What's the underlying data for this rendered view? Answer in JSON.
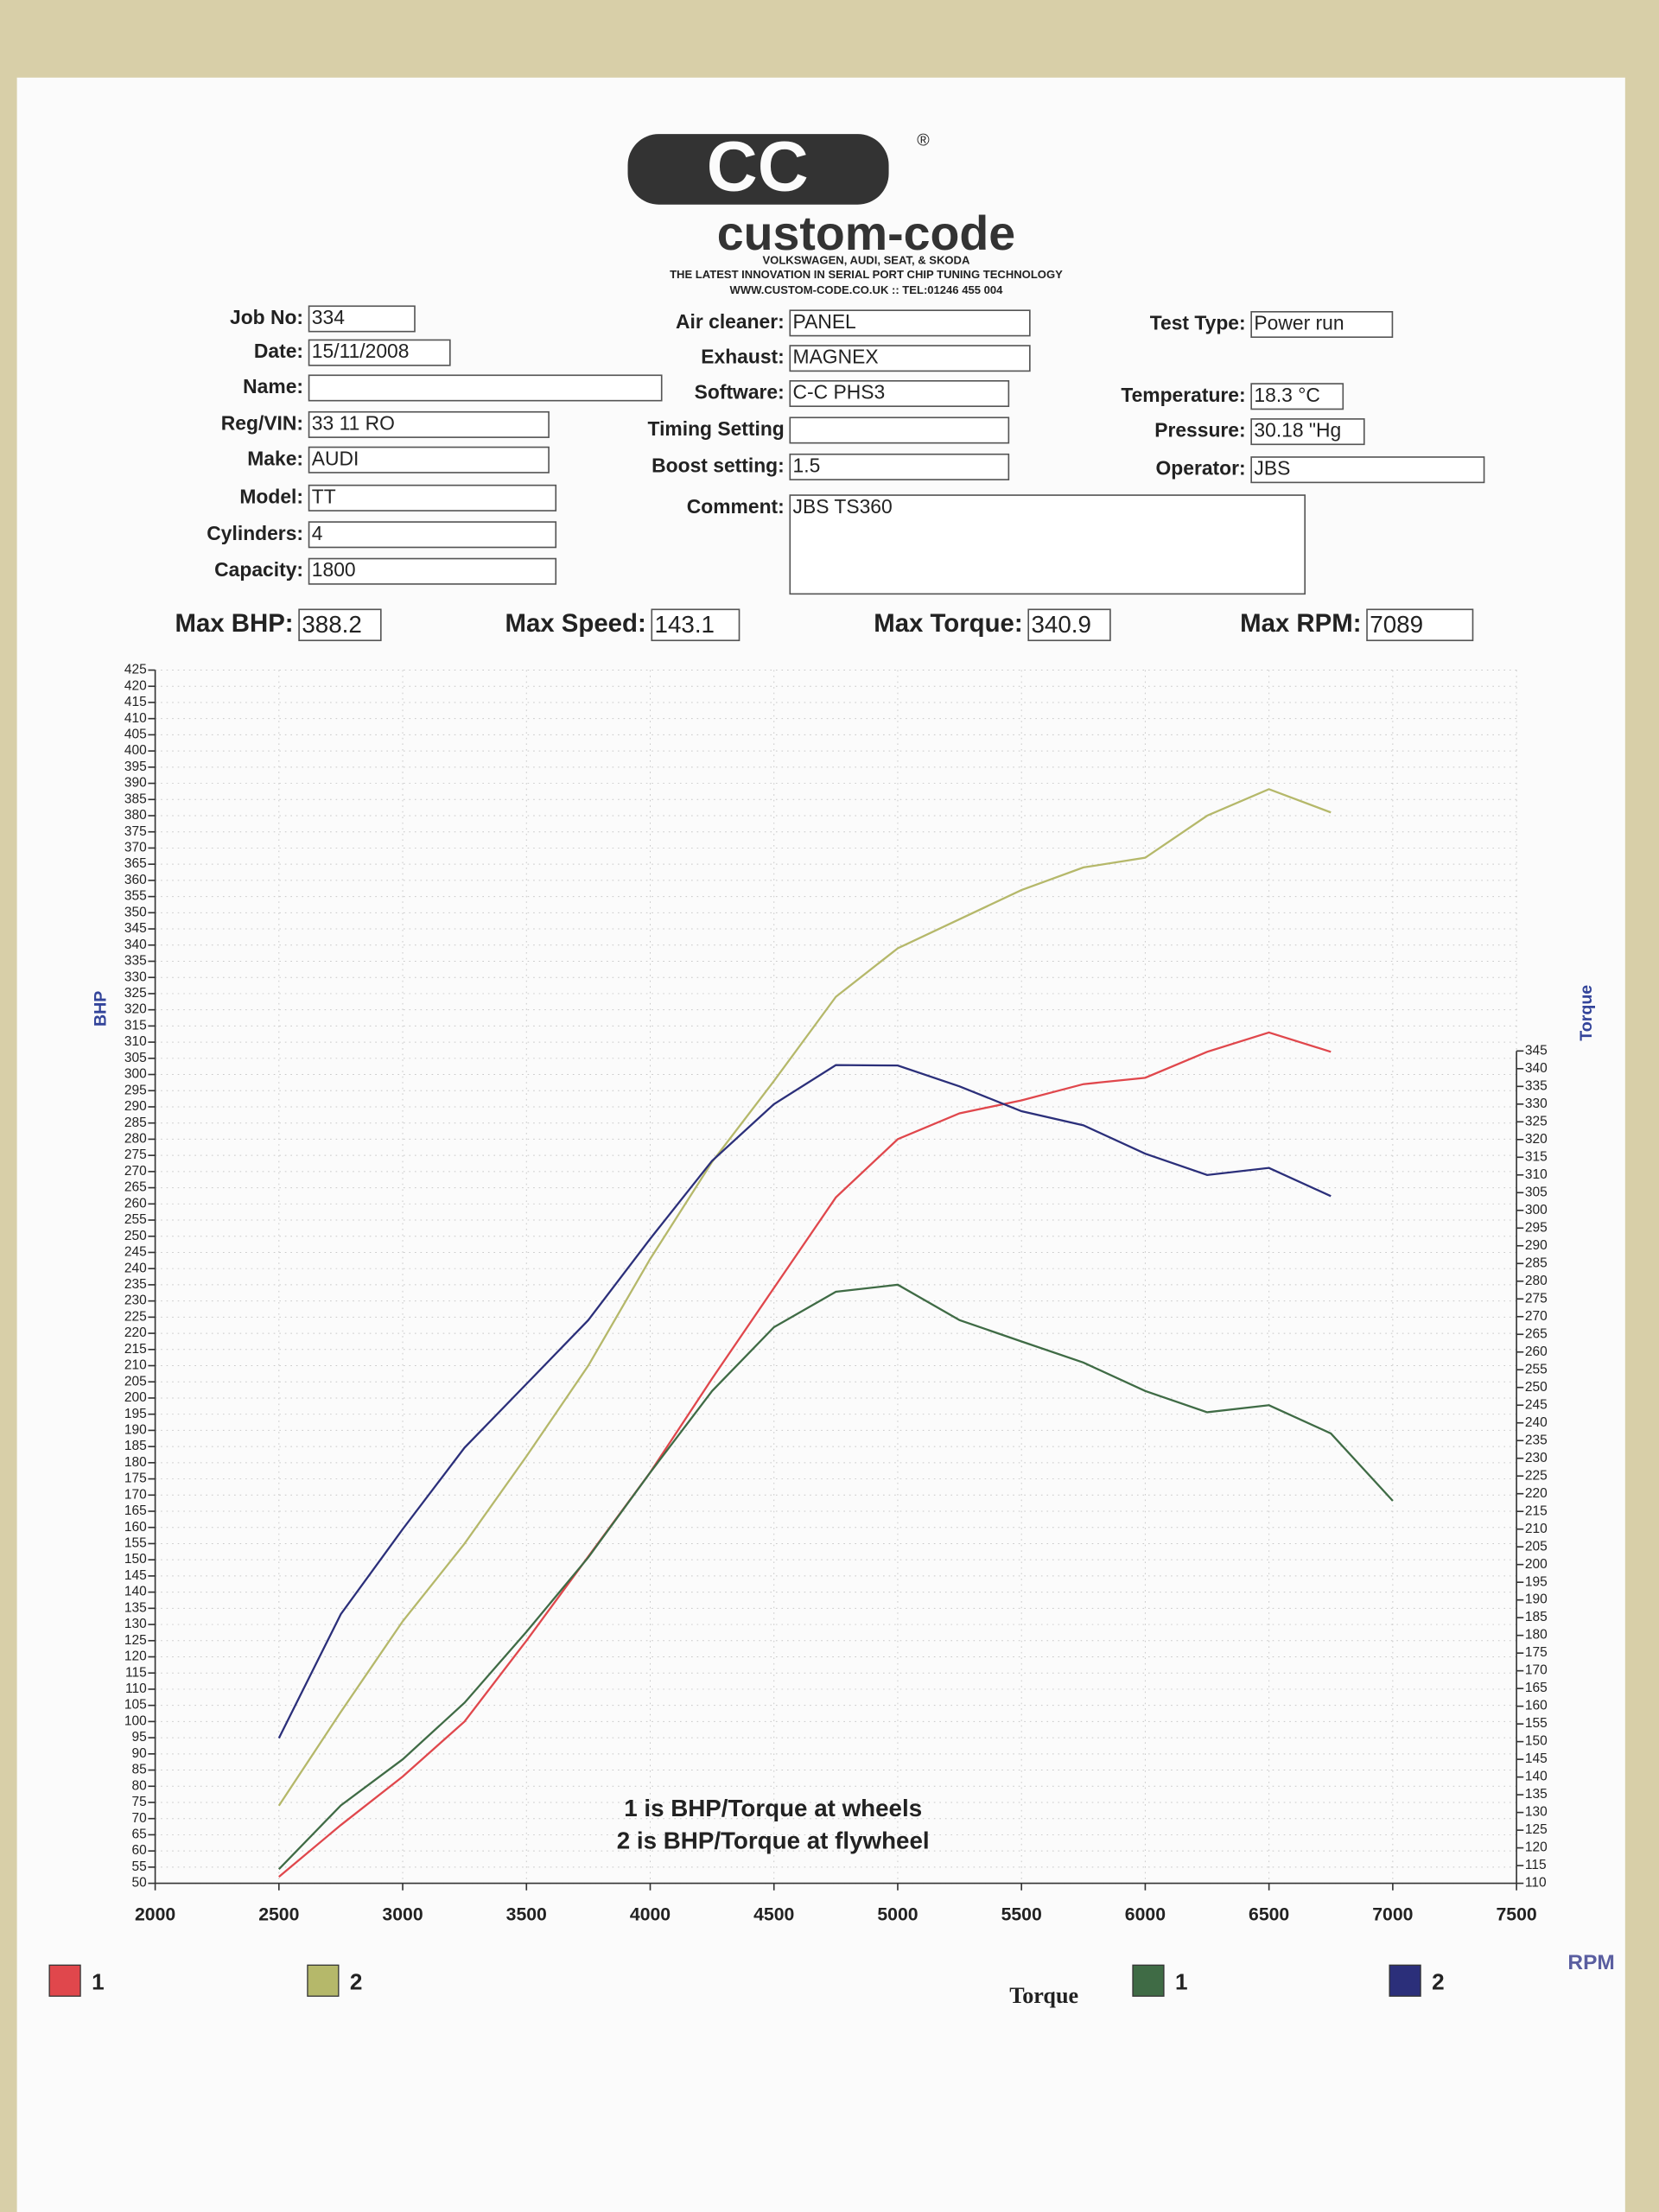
{
  "logo": {
    "mark": "CC",
    "registered": "®",
    "name": "custom-code",
    "tagline1": "VOLKSWAGEN, AUDI, SEAT, & SKODA",
    "tagline2": "THE LATEST INNOVATION IN SERIAL PORT CHIP TUNING TECHNOLOGY",
    "website": "WWW.CUSTOM-CODE.CO.UK :: TEL:01246 455 004"
  },
  "form": {
    "columns": [
      [
        {
          "label": "Job No:",
          "value": "334"
        },
        {
          "label": "Date:",
          "value": "15/11/2008"
        },
        {
          "label": "Name:"
        },
        {
          "label": "Reg/VIN:",
          "value": "33 11 RO"
        },
        {
          "label": "Make:",
          "value": "AUDI"
        },
        {
          "label": "Model:",
          "value": "TT"
        },
        {
          "label": "Cylinders:",
          "value": "4"
        },
        {
          "label": "Capacity:",
          "value": "1800"
        }
      ],
      [
        {
          "label": "Air cleaner:",
          "value": "PANEL"
        },
        {
          "label": "Exhaust:",
          "value": "MAGNEX"
        },
        {
          "label": "Software:",
          "value": "C-C PHS3"
        },
        {
          "label": "Timing Setting"
        },
        {
          "label": "Boost setting:",
          "value": "1.5"
        },
        {
          "label": "Comment:",
          "value": "JBS TS360"
        }
      ],
      [
        {
          "label": "Test Type:",
          "value": "Power run"
        },
        {
          "label": "Temperature:",
          "value": "18.3 °C"
        },
        {
          "label": "Pressure:",
          "value": "30.18 \"Hg"
        },
        {
          "label": "Operator:",
          "value": "JBS"
        }
      ]
    ]
  },
  "summary": [
    {
      "label": "Max BHP:",
      "value": "388.2"
    },
    {
      "label": "Max Speed:",
      "value": "143.1"
    },
    {
      "label": "Max Torque:",
      "value": "340.9"
    },
    {
      "label": "Max RPM:",
      "value": "7089"
    }
  ],
  "chart_data": {
    "type": "line",
    "xlabel": "RPM",
    "ylabel": "BHP",
    "y2label": "Torque",
    "annotations": [
      "1 is BHP/Torque at wheels",
      "2 is BHP/Torque at flywheel"
    ],
    "legend_label": "Torque",
    "grid": true,
    "x": [
      2500,
      2750,
      3000,
      3250,
      3500,
      3750,
      4000,
      4250,
      4500,
      4750,
      5000,
      5250,
      5500,
      5750,
      6000,
      6250,
      6500,
      6750,
      7000
    ],
    "xlim": [
      2000,
      7500
    ],
    "xticks": [
      2000,
      2500,
      3000,
      3500,
      4000,
      4500,
      5000,
      5500,
      6000,
      6500,
      7000,
      7500
    ],
    "ylim": [
      50,
      425
    ],
    "yticks": [
      50,
      55,
      60,
      65,
      70,
      75,
      80,
      85,
      90,
      95,
      100,
      105,
      110,
      115,
      120,
      125,
      130,
      135,
      140,
      145,
      150,
      155,
      160,
      165,
      170,
      175,
      180,
      185,
      190,
      195,
      200,
      205,
      210,
      215,
      220,
      225,
      230,
      235,
      240,
      245,
      250,
      255,
      260,
      265,
      270,
      275,
      280,
      285,
      290,
      295,
      300,
      305,
      310,
      315,
      320,
      325,
      330,
      335,
      340,
      345,
      350,
      355,
      360,
      365,
      370,
      375,
      380,
      385,
      390,
      395,
      400,
      405,
      410,
      415,
      420,
      425
    ],
    "y2lim": [
      110,
      345
    ],
    "y2ticks": [
      110,
      115,
      120,
      125,
      130,
      135,
      140,
      145,
      150,
      155,
      160,
      165,
      170,
      175,
      180,
      185,
      190,
      195,
      200,
      205,
      210,
      215,
      220,
      225,
      230,
      235,
      240,
      245,
      250,
      255,
      260,
      265,
      270,
      275,
      280,
      285,
      290,
      295,
      300,
      305,
      310,
      315,
      320,
      325,
      330,
      335,
      340,
      345
    ],
    "series": [
      {
        "name": "1",
        "color": "#e0474c",
        "values": [
          52,
          68,
          83,
          100,
          125,
          151,
          177,
          206,
          234,
          262,
          280,
          288,
          292,
          297,
          299,
          307,
          313,
          307,
          null
        ]
      },
      {
        "name": "2",
        "color": "#b5b86a",
        "values": [
          74,
          103,
          131,
          155,
          182,
          210,
          243,
          273,
          298,
          324,
          339,
          348,
          357,
          364,
          367,
          380,
          388.2,
          381,
          null
        ]
      },
      {
        "name": "1",
        "color": "#3f6b45",
        "axis": "y2",
        "values": [
          114,
          132,
          145,
          161,
          181,
          202,
          226,
          249,
          267,
          277,
          279,
          269,
          263,
          257,
          249,
          243,
          245,
          237,
          218
        ]
      },
      {
        "name": "2",
        "color": "#2b2f7a",
        "axis": "y2",
        "values": [
          151,
          186,
          210,
          233,
          251,
          269,
          292,
          314,
          330,
          341,
          340.9,
          335,
          328,
          324,
          316,
          310,
          312,
          304,
          null
        ]
      }
    ]
  }
}
